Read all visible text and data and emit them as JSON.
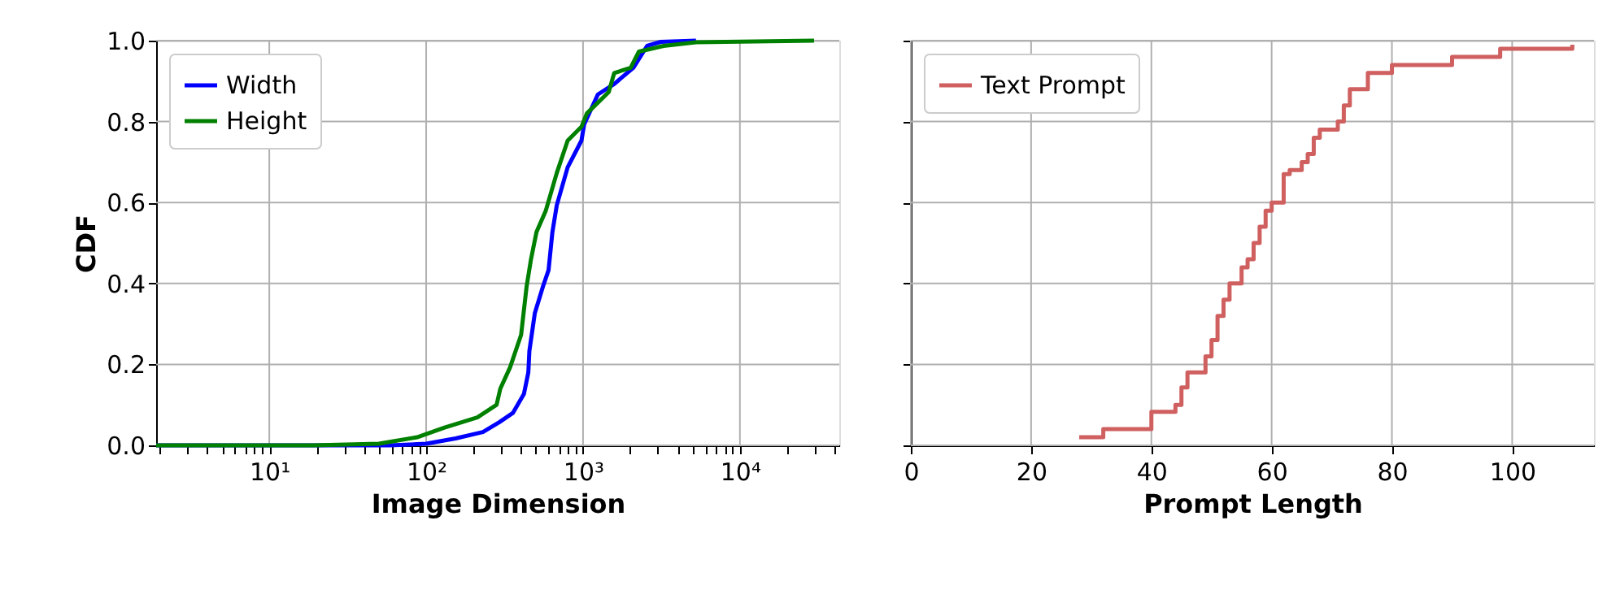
{
  "chart_data": [
    {
      "type": "line",
      "xlabel": "Image Dimension",
      "ylabel": "CDF",
      "log": "x",
      "grid": true,
      "legend": "top left",
      "xlim": [
        1.9,
        43000
      ],
      "xticks": [
        {
          "value": 2,
          "label": null
        },
        {
          "value": 3,
          "label": null
        },
        {
          "value": 4,
          "label": null
        },
        {
          "value": 5,
          "label": null
        },
        {
          "value": 6,
          "label": null
        },
        {
          "value": 7,
          "label": null
        },
        {
          "value": 8,
          "label": null
        },
        {
          "value": 9,
          "label": null
        },
        {
          "value": 10,
          "label": "10¹"
        },
        {
          "value": 20,
          "label": null
        },
        {
          "value": 30,
          "label": null
        },
        {
          "value": 40,
          "label": null
        },
        {
          "value": 50,
          "label": null
        },
        {
          "value": 60,
          "label": null
        },
        {
          "value": 70,
          "label": null
        },
        {
          "value": 80,
          "label": null
        },
        {
          "value": 90,
          "label": null
        },
        {
          "value": 100,
          "label": "10²"
        },
        {
          "value": 200,
          "label": null
        },
        {
          "value": 300,
          "label": null
        },
        {
          "value": 400,
          "label": null
        },
        {
          "value": 500,
          "label": null
        },
        {
          "value": 600,
          "label": null
        },
        {
          "value": 700,
          "label": null
        },
        {
          "value": 800,
          "label": null
        },
        {
          "value": 900,
          "label": null
        },
        {
          "value": 1000,
          "label": "10³"
        },
        {
          "value": 2000,
          "label": null
        },
        {
          "value": 3000,
          "label": null
        },
        {
          "value": 4000,
          "label": null
        },
        {
          "value": 5000,
          "label": null
        },
        {
          "value": 6000,
          "label": null
        },
        {
          "value": 7000,
          "label": null
        },
        {
          "value": 8000,
          "label": null
        },
        {
          "value": 9000,
          "label": null
        },
        {
          "value": 10000,
          "label": "10⁴"
        },
        {
          "value": 20000,
          "label": null
        },
        {
          "value": 30000,
          "label": null
        },
        {
          "value": 40000,
          "label": null
        }
      ],
      "ylim": [
        0,
        1
      ],
      "yticks": [
        {
          "value": 0,
          "label": "0.0"
        },
        0.2,
        0.4,
        0.6,
        0.8,
        {
          "value": 1,
          "label": "1.0"
        }
      ],
      "series": [
        {
          "name": "Width",
          "color": "#0000ff",
          "x": [
            1.9,
            58.6,
            100,
            154,
            230,
            292,
            357,
            420,
            448,
            455,
            493,
            556,
            603,
            638,
            680,
            798,
            977,
            1017,
            1243,
            1580,
            2094,
            2560,
            3131,
            5250
          ],
          "values": [
            0,
            0,
            0.004,
            0.017,
            0.033,
            0.057,
            0.08,
            0.127,
            0.18,
            0.233,
            0.327,
            0.393,
            0.433,
            0.527,
            0.593,
            0.687,
            0.753,
            0.793,
            0.867,
            0.893,
            0.933,
            0.987,
            0.997,
            1.0
          ]
        },
        {
          "name": "Height",
          "color": "#008000",
          "x": [
            1.9,
            19,
            49.9,
            87.5,
            131,
            212,
            281,
            297,
            343,
            403,
            437,
            466,
            505,
            579,
            680,
            798,
            977,
            1057,
            1458,
            1580,
            2013,
            2270,
            3260,
            5250,
            29700
          ],
          "values": [
            0,
            0,
            0.004,
            0.02,
            0.044,
            0.069,
            0.1,
            0.14,
            0.193,
            0.273,
            0.393,
            0.46,
            0.527,
            0.58,
            0.673,
            0.753,
            0.787,
            0.82,
            0.873,
            0.92,
            0.933,
            0.973,
            0.987,
            0.996,
            1.0
          ]
        }
      ]
    },
    {
      "type": "step",
      "xlabel": "Prompt Length",
      "grid": true,
      "legend": "top left",
      "tick_labels": "x",
      "xlim": [
        0,
        113.6
      ],
      "xticks": [
        0,
        20,
        40,
        60,
        80,
        100
      ],
      "ylim": [
        0,
        1
      ],
      "yticks": [
        0,
        0.2,
        0.4,
        0.6,
        0.8,
        1
      ],
      "series": [
        {
          "name": "Text Prompt",
          "color": "#d06060",
          "x": [
            28,
            32,
            40,
            44,
            45,
            46,
            49,
            50,
            51,
            52,
            53,
            55,
            56,
            57,
            58,
            59,
            60,
            62,
            63,
            65,
            66,
            67,
            68,
            71,
            72,
            73,
            76,
            80,
            90,
            98,
            110
          ],
          "values": [
            0.02,
            0.04,
            0.083,
            0.1,
            0.143,
            0.18,
            0.22,
            0.26,
            0.32,
            0.36,
            0.4,
            0.44,
            0.46,
            0.5,
            0.54,
            0.58,
            0.6,
            0.67,
            0.68,
            0.7,
            0.72,
            0.76,
            0.78,
            0.8,
            0.84,
            0.88,
            0.92,
            0.94,
            0.96,
            0.98,
            0.99
          ]
        }
      ]
    }
  ]
}
